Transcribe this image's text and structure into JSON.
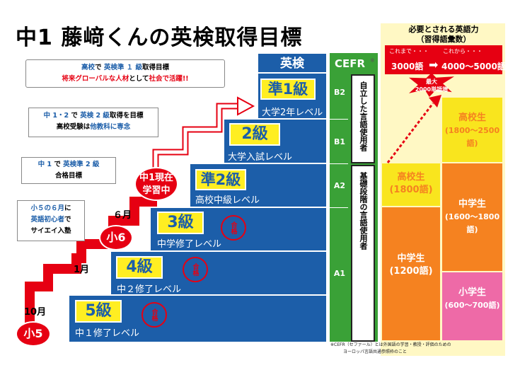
{
  "title": "中1  藤﨑くんの英検取得目標",
  "eiken": {
    "header": "英検",
    "steps": [
      {
        "grade": "準1級",
        "level": "大学2年レベル"
      },
      {
        "grade": "2級",
        "level": "大学入試レベル"
      },
      {
        "grade": "準2級",
        "level": "高校中級レベル"
      },
      {
        "grade": "3級",
        "level": "中学修了レベル"
      },
      {
        "grade": "4級",
        "level": "中２修了レベル"
      },
      {
        "grade": "5級",
        "level": "中１修了レベル"
      }
    ],
    "stamp": "合格"
  },
  "cefr": {
    "header": "CEFR",
    "star": "※",
    "levels": [
      "B2",
      "B1",
      "A2",
      "A1"
    ],
    "independent": "自立した言語使用者",
    "basic": "基礎段階の言語使用者"
  },
  "vocab": {
    "title_line1": "必要とされる英語力",
    "title_line2": "（習得語彙数）",
    "now_label": "これまで・・・",
    "future_label": "これから・・・",
    "now_value": "3000語",
    "future_value": "4000〜5000語",
    "increase_line1": "最大",
    "increase_line2": "2000単語増",
    "hs_right_1": "高校生",
    "hs_right_2": "(1800〜2500語)",
    "ms_right_1": "中学生",
    "ms_right_2": "(1600〜1800語)",
    "es_right_1": "小学生",
    "es_right_2": "(600〜700語)",
    "hs_left_1": "高校生",
    "hs_left_2": "(1800語)",
    "ms_left_1": "中学生",
    "ms_left_2": "(1200語)"
  },
  "callouts": {
    "c1": {
      "a": "高校",
      "b": "で",
      "c": "英検準 １ 級",
      "d": "取得目標",
      "e": "将来グローバルな人材",
      "f": "として",
      "g": "社会で活躍!!"
    },
    "c2": {
      "a": "中 1・2",
      "b": " で ",
      "c": "英検 2 級",
      "d": "取得を目標",
      "e": "高校受験",
      "f": "は",
      "g": "他教科に専念"
    },
    "c3": {
      "a": "中 1",
      "b": " で ",
      "c": "英検準 2 級",
      "d": "合格目標"
    },
    "c4": {
      "a": "小５の６月",
      "b": "に",
      "c": "英語初心者",
      "d": "で",
      "e": "サイエイ入塾"
    }
  },
  "timeline": {
    "now_line1": "中1現在",
    "now_line2": "学習中",
    "june": "６月",
    "grade6": "小6",
    "jan": "1月",
    "oct": "10月",
    "grade5": "小5"
  },
  "footnote_line1": "※CEFR（セファール）とは外国語の学習・教授・評価のための",
  "footnote_line2": "ヨーロッパ言語共通参照枠のこと",
  "colors": {
    "blue": "#1c5ea9",
    "green": "#3aa137",
    "red": "#e60012",
    "orange": "#f58220",
    "yellow": "#ffee22",
    "pink": "#ee6aa7",
    "cream": "#fff8c4"
  }
}
